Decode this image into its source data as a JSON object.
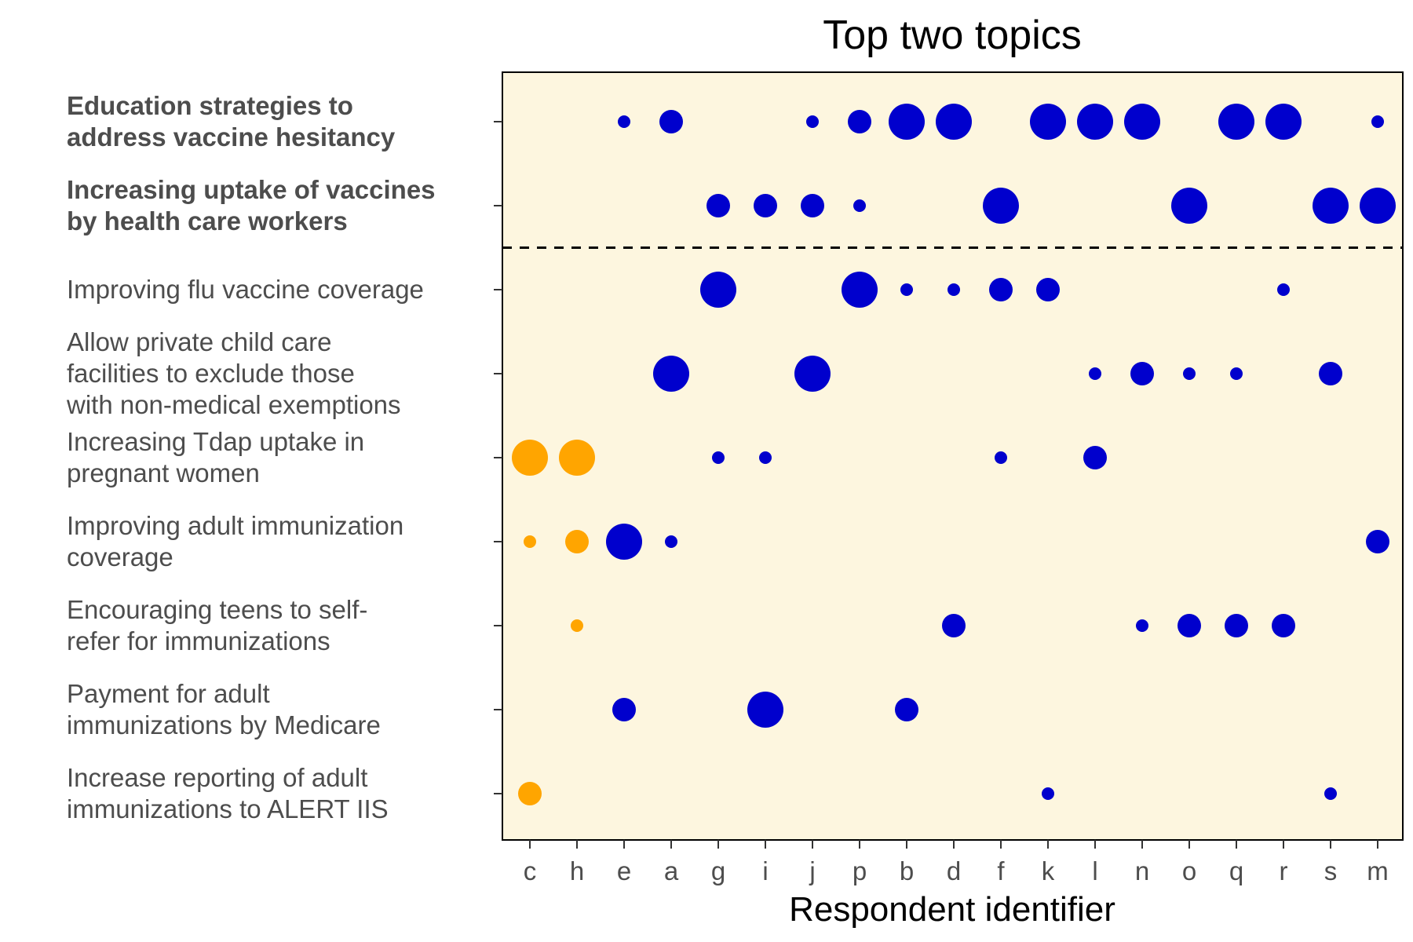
{
  "chart_data": {
    "type": "scatter",
    "title": "Top two topics",
    "xlabel": "Respondent identifier",
    "ylabel": "",
    "categories": [
      "c",
      "h",
      "e",
      "a",
      "g",
      "i",
      "j",
      "p",
      "b",
      "d",
      "f",
      "k",
      "l",
      "n",
      "o",
      "q",
      "r",
      "s",
      "m"
    ],
    "topics": [
      {
        "lines": [
          "Education strategies to",
          "address vaccine hesitancy"
        ],
        "bold": true
      },
      {
        "lines": [
          "Increasing uptake of vaccines",
          "by health care workers"
        ],
        "bold": true
      },
      {
        "lines": [
          "Improving flu vaccine coverage"
        ],
        "bold": false
      },
      {
        "lines": [
          "Allow private child care",
          "facilities to exclude those",
          "with non-medical exemptions"
        ],
        "bold": false
      },
      {
        "lines": [
          "Increasing Tdap uptake in",
          "pregnant women"
        ],
        "bold": false
      },
      {
        "lines": [
          "Improving adult immunization",
          "coverage"
        ],
        "bold": false
      },
      {
        "lines": [
          "Encouraging teens to self-",
          "refer for immunizations"
        ],
        "bold": false
      },
      {
        "lines": [
          "Payment for adult",
          "immunizations by Medicare"
        ],
        "bold": false
      },
      {
        "lines": [
          "Increase reporting of adult",
          "immunizations to ALERT IIS"
        ],
        "bold": false
      }
    ],
    "size_levels": [
      1,
      2,
      3
    ],
    "series_colors": {
      "orange": "#ffa500",
      "blue": "#0000cd"
    },
    "colors": {
      "panel_background": "#fdf6df",
      "panel_border": "#000000",
      "tick_text": "#4d4d4d",
      "divider": "#000000"
    },
    "divider_between_topics": [
      1,
      2
    ],
    "divider_style": "dashed",
    "grid": false,
    "legend": "none",
    "points": [
      {
        "topic": 0,
        "x": "e",
        "size": 1,
        "color": "blue"
      },
      {
        "topic": 0,
        "x": "a",
        "size": 2,
        "color": "blue"
      },
      {
        "topic": 0,
        "x": "j",
        "size": 1,
        "color": "blue"
      },
      {
        "topic": 0,
        "x": "p",
        "size": 2,
        "color": "blue"
      },
      {
        "topic": 0,
        "x": "b",
        "size": 3,
        "color": "blue"
      },
      {
        "topic": 0,
        "x": "d",
        "size": 3,
        "color": "blue"
      },
      {
        "topic": 0,
        "x": "k",
        "size": 3,
        "color": "blue"
      },
      {
        "topic": 0,
        "x": "l",
        "size": 3,
        "color": "blue"
      },
      {
        "topic": 0,
        "x": "n",
        "size": 3,
        "color": "blue"
      },
      {
        "topic": 0,
        "x": "q",
        "size": 3,
        "color": "blue"
      },
      {
        "topic": 0,
        "x": "r",
        "size": 3,
        "color": "blue"
      },
      {
        "topic": 0,
        "x": "m",
        "size": 1,
        "color": "blue"
      },
      {
        "topic": 1,
        "x": "g",
        "size": 2,
        "color": "blue"
      },
      {
        "topic": 1,
        "x": "i",
        "size": 2,
        "color": "blue"
      },
      {
        "topic": 1,
        "x": "j",
        "size": 2,
        "color": "blue"
      },
      {
        "topic": 1,
        "x": "p",
        "size": 1,
        "color": "blue"
      },
      {
        "topic": 1,
        "x": "f",
        "size": 3,
        "color": "blue"
      },
      {
        "topic": 1,
        "x": "o",
        "size": 3,
        "color": "blue"
      },
      {
        "topic": 1,
        "x": "s",
        "size": 3,
        "color": "blue"
      },
      {
        "topic": 1,
        "x": "m",
        "size": 3,
        "color": "blue"
      },
      {
        "topic": 2,
        "x": "g",
        "size": 3,
        "color": "blue"
      },
      {
        "topic": 2,
        "x": "p",
        "size": 3,
        "color": "blue"
      },
      {
        "topic": 2,
        "x": "b",
        "size": 1,
        "color": "blue"
      },
      {
        "topic": 2,
        "x": "d",
        "size": 1,
        "color": "blue"
      },
      {
        "topic": 2,
        "x": "f",
        "size": 2,
        "color": "blue"
      },
      {
        "topic": 2,
        "x": "k",
        "size": 2,
        "color": "blue"
      },
      {
        "topic": 2,
        "x": "r",
        "size": 1,
        "color": "blue"
      },
      {
        "topic": 3,
        "x": "a",
        "size": 3,
        "color": "blue"
      },
      {
        "topic": 3,
        "x": "j",
        "size": 3,
        "color": "blue"
      },
      {
        "topic": 3,
        "x": "l",
        "size": 1,
        "color": "blue"
      },
      {
        "topic": 3,
        "x": "n",
        "size": 2,
        "color": "blue"
      },
      {
        "topic": 3,
        "x": "o",
        "size": 1,
        "color": "blue"
      },
      {
        "topic": 3,
        "x": "q",
        "size": 1,
        "color": "blue"
      },
      {
        "topic": 3,
        "x": "s",
        "size": 2,
        "color": "blue"
      },
      {
        "topic": 4,
        "x": "c",
        "size": 3,
        "color": "orange"
      },
      {
        "topic": 4,
        "x": "h",
        "size": 3,
        "color": "orange"
      },
      {
        "topic": 4,
        "x": "g",
        "size": 1,
        "color": "blue"
      },
      {
        "topic": 4,
        "x": "i",
        "size": 1,
        "color": "blue"
      },
      {
        "topic": 4,
        "x": "f",
        "size": 1,
        "color": "blue"
      },
      {
        "topic": 4,
        "x": "l",
        "size": 2,
        "color": "blue"
      },
      {
        "topic": 5,
        "x": "c",
        "size": 1,
        "color": "orange"
      },
      {
        "topic": 5,
        "x": "h",
        "size": 2,
        "color": "orange"
      },
      {
        "topic": 5,
        "x": "e",
        "size": 3,
        "color": "blue"
      },
      {
        "topic": 5,
        "x": "a",
        "size": 1,
        "color": "blue"
      },
      {
        "topic": 5,
        "x": "m",
        "size": 2,
        "color": "blue"
      },
      {
        "topic": 6,
        "x": "h",
        "size": 1,
        "color": "orange"
      },
      {
        "topic": 6,
        "x": "d",
        "size": 2,
        "color": "blue"
      },
      {
        "topic": 6,
        "x": "n",
        "size": 1,
        "color": "blue"
      },
      {
        "topic": 6,
        "x": "o",
        "size": 2,
        "color": "blue"
      },
      {
        "topic": 6,
        "x": "q",
        "size": 2,
        "color": "blue"
      },
      {
        "topic": 6,
        "x": "r",
        "size": 2,
        "color": "blue"
      },
      {
        "topic": 7,
        "x": "e",
        "size": 2,
        "color": "blue"
      },
      {
        "topic": 7,
        "x": "i",
        "size": 3,
        "color": "blue"
      },
      {
        "topic": 7,
        "x": "b",
        "size": 2,
        "color": "blue"
      },
      {
        "topic": 8,
        "x": "c",
        "size": 2,
        "color": "orange"
      },
      {
        "topic": 8,
        "x": "k",
        "size": 1,
        "color": "blue"
      },
      {
        "topic": 8,
        "x": "s",
        "size": 1,
        "color": "blue"
      }
    ]
  }
}
